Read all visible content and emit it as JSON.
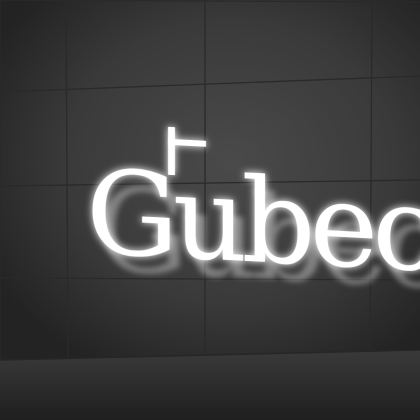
{
  "sign": {
    "text": "Gubech",
    "color": "#ffffff",
    "glow_color": "#ffffff"
  },
  "wall": {
    "color": "#3b3b3b",
    "grout_color": "#2f2f2f"
  },
  "floor": {
    "color": "#2a2a2a"
  }
}
